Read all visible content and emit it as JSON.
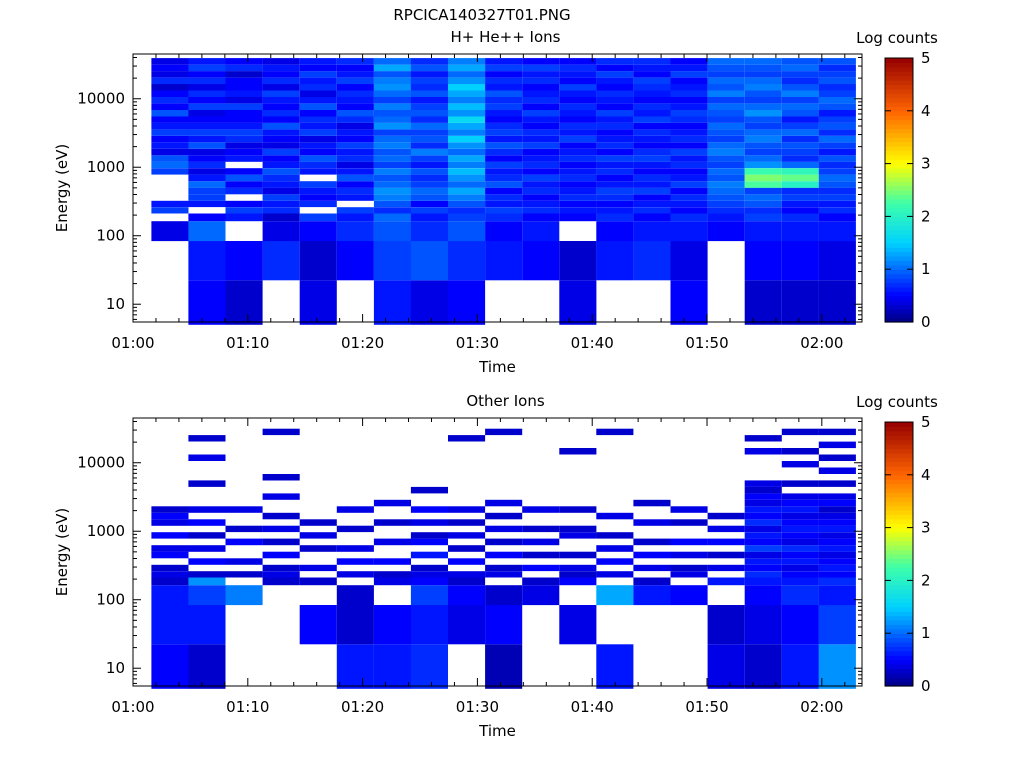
{
  "page_title": "RPCICA140327T01.PNG",
  "chart_data": [
    {
      "type": "heatmap",
      "title": "H+ He++ Ions",
      "xlabel": "Time",
      "ylabel": "Energy (eV)",
      "x_ticks": [
        "01:00",
        "01:10",
        "01:20",
        "01:30",
        "01:40",
        "01:50",
        "02:00"
      ],
      "y_ticks": [
        "10",
        "100",
        "1000",
        "10000"
      ],
      "y_scale": "log",
      "y_range": [
        5.5,
        45000
      ],
      "colorbar": {
        "label": "Log counts",
        "range": [
          0,
          5
        ],
        "ticks": [
          "0",
          "1",
          "2",
          "3",
          "4",
          "5"
        ]
      },
      "time_bins": [
        "01:02",
        "01:05",
        "01:08",
        "01:12",
        "01:15",
        "01:18",
        "01:22",
        "01:25",
        "01:28",
        "01:32",
        "01:35",
        "01:38",
        "01:41",
        "01:45",
        "01:48",
        "01:51",
        "01:55",
        "01:58",
        "02:01"
      ],
      "energy_bins_eV": [
        10,
        50,
        140,
        190,
        235,
        290,
        360,
        450,
        560,
        700,
        870,
        1080,
        1340,
        1670,
        2070,
        2580,
        3200,
        3980,
        4950,
        6150,
        7650,
        9500,
        11800,
        14700,
        18300,
        22700,
        28200,
        35000
      ],
      "log_counts": [
        [
          0,
          0,
          0.4,
          0,
          0.8,
          0.6,
          0,
          0,
          0,
          0,
          0.8,
          1.0,
          0.9,
          0.4,
          0.6,
          0.5,
          0.8,
          0.6,
          0.5,
          0.9,
          0.5,
          0.7,
          0.5,
          0.3,
          0.7,
          0.4,
          0.5,
          0.4
        ],
        [
          0.5,
          0.6,
          1.0,
          0.5,
          0,
          0.6,
          0.8,
          0.8,
          1.0,
          0.6,
          0.4,
          0.7,
          0.5,
          0.4,
          0.9,
          0.6,
          0.8,
          0.6,
          0.5,
          0.4,
          0.8,
          0.5,
          0.7,
          0.4,
          0.7,
          0.5,
          0.8,
          0.6
        ],
        [
          0.3,
          0.5,
          0,
          0.6,
          0.8,
          0.5,
          0,
          0.7,
          0.5,
          0.9,
          0.5,
          0,
          0.6,
          0.5,
          0.4,
          0.7,
          0.8,
          0.6,
          0.5,
          0.5,
          0.8,
          0.4,
          0.6,
          0.5,
          0.5,
          0.3,
          0.7,
          0.5
        ],
        [
          0,
          0.7,
          0.4,
          0.3,
          0.7,
          0.6,
          0.8,
          0.4,
          0.6,
          0.7,
          0.9,
          0.6,
          0.5,
          0.8,
          0.4,
          0.5,
          0.6,
          0.9,
          0.5,
          0.7,
          0.5,
          0.6,
          0.8,
          0.4,
          0.7,
          0.5,
          0.6,
          0.4
        ],
        [
          0.4,
          0.3,
          0.5,
          0.8,
          0,
          0.7,
          0.5,
          0.6,
          0.8,
          0,
          0.6,
          0.7,
          0.9,
          0.5,
          0.6,
          0.4,
          0.8,
          0.6,
          0.7,
          0.5,
          0.9,
          0.6,
          0.4,
          0.7,
          0.6,
          0.8,
          0.5,
          0.6
        ],
        [
          0,
          0.5,
          0.7,
          0.6,
          0.8,
          0,
          0.6,
          0.7,
          0.5,
          0.9,
          0.6,
          0.4,
          0.7,
          0.6,
          0.8,
          0.5,
          0.6,
          0.4,
          0.7,
          0.9,
          0.5,
          0.6,
          0.7,
          0.5,
          0.8,
          0.6,
          0.5,
          0.7
        ],
        [
          0.6,
          0.8,
          0.9,
          1.0,
          0.7,
          0.9,
          1.1,
          1.2,
          1.0,
          0.9,
          1.1,
          0.8,
          1.0,
          0.9,
          1.1,
          1.0,
          0.8,
          1.2,
          1.0,
          0.9,
          1.1,
          0.8,
          1.0,
          1.2,
          1.1,
          0.9,
          1.3,
          1.0
        ],
        [
          0.4,
          0.9,
          0.7,
          0.6,
          0.8,
          0.5,
          0.9,
          1.0,
          0.8,
          0.7,
          0.9,
          0.6,
          0.8,
          1.1,
          0.7,
          0.9,
          0.8,
          1.0,
          0.7,
          0.9,
          0.8,
          0.6,
          0.9,
          0.7,
          0.8,
          0.6,
          0.9,
          0.7
        ],
        [
          0.5,
          0.7,
          0.9,
          0.8,
          0.7,
          0.9,
          1.1,
          1.3,
          1.0,
          1.2,
          1.4,
          1.1,
          1.3,
          1.0,
          1.2,
          1.5,
          1.1,
          1.3,
          1.6,
          1.2,
          1.4,
          1.1,
          1.3,
          1.5,
          1.2,
          1.0,
          1.3,
          1.1
        ],
        [
          0,
          0.6,
          0.5,
          0.7,
          0.8,
          0.6,
          0.7,
          0.5,
          0.9,
          0.7,
          0.6,
          0.8,
          0.5,
          0.7,
          0.9,
          0.6,
          0.8,
          0.7,
          0.5,
          0.6,
          0.8,
          0.7,
          0.9,
          0.6,
          0.7,
          0.5,
          0.8,
          0.6
        ],
        [
          0,
          0.5,
          0.6,
          0.5,
          0.7,
          0.6,
          0.5,
          0.7,
          0.6,
          0.8,
          0.5,
          0.7,
          0.6,
          0.5,
          0.8,
          0.6,
          0.7,
          0.5,
          0.6,
          0.8,
          0.5,
          0.7,
          0.6,
          0.5,
          0.7,
          0.6,
          0.8,
          0.5
        ],
        [
          0.4,
          0.3,
          0,
          0.5,
          0.6,
          0.5,
          0.7,
          0.6,
          0.5,
          0.7,
          0.6,
          0.5,
          0.7,
          0.6,
          0.5,
          0.8,
          0.6,
          0.7,
          0.5,
          0.6,
          0.7,
          0.5,
          0.6,
          0.8,
          0.5,
          0.6,
          0.7,
          0.5
        ],
        [
          0,
          0.6,
          0.5,
          0.7,
          0.6,
          0.5,
          0.7,
          0.8,
          0.6,
          0.5,
          0.7,
          0.6,
          0.8,
          0.5,
          0.7,
          0.6,
          0.5,
          0.7,
          0.6,
          0.8,
          0.5,
          0.6,
          0.7,
          0.5,
          0.6,
          0.8,
          0.5,
          0.7
        ],
        [
          0,
          0.7,
          0.6,
          0.5,
          0.7,
          0.6,
          0.5,
          0.8,
          0.6,
          0.7,
          0.5,
          0.6,
          0.8,
          0.7,
          0.5,
          0.6,
          0.7,
          0.5,
          0.8,
          0.6,
          0.7,
          0.5,
          0.6,
          0.7,
          0.8,
          0.5,
          0.6,
          0.7
        ],
        [
          0.5,
          0.4,
          0.6,
          0.7,
          0.5,
          0.6,
          0.7,
          0.5,
          0.8,
          0.6,
          0.5,
          0.7,
          0.6,
          0.8,
          0.5,
          0.7,
          0.6,
          0.5,
          0.7,
          0.8,
          0.6,
          0.5,
          0.7,
          0.6,
          0.5,
          0.8,
          0.6,
          0.5
        ],
        [
          0,
          0,
          0.5,
          0.6,
          0.7,
          0.8,
          0.9,
          1.0,
          1.1,
          0.9,
          1.0,
          0.8,
          0.9,
          1.1,
          1.0,
          0.8,
          0.9,
          1.0,
          0.8,
          0.9,
          1.0,
          0.8,
          1.1,
          0.9,
          1.0,
          0.8,
          0.9,
          1.0
        ],
        [
          0.3,
          0.5,
          0.6,
          0.8,
          0.7,
          0.9,
          1.0,
          0.8,
          2.3,
          2.5,
          2.2,
          1.2,
          1.0,
          0.8,
          0.9,
          1.1,
          1.0,
          0.8,
          0.9,
          1.2,
          1.0,
          0.8,
          0.9,
          1.1,
          1.0,
          0.8,
          0.9,
          1.0
        ],
        [
          0.3,
          0.5,
          0.6,
          0.7,
          0.5,
          0.6,
          0.8,
          0.7,
          2.0,
          2.4,
          2.1,
          1.0,
          0.7,
          0.8,
          0.9,
          0.7,
          1.0,
          0.8,
          0.6,
          0.9,
          1.0,
          0.8,
          1.1,
          0.9,
          0.7,
          0.8,
          1.0,
          0.9
        ],
        [
          0.3,
          0.4,
          0.6,
          0.5,
          0.7,
          0.6,
          0.8,
          0.7,
          0.9,
          1.0,
          0.8,
          0.7,
          0.9,
          0.6,
          0.8,
          1.0,
          0.7,
          0.9,
          0.8,
          0.6,
          0.9,
          1.0,
          0.8,
          0.7,
          0.9,
          0.8,
          0.7,
          0.9
        ]
      ]
    },
    {
      "type": "heatmap",
      "title": "Other Ions",
      "xlabel": "Time",
      "ylabel": "Energy (eV)",
      "x_ticks": [
        "01:00",
        "01:10",
        "01:20",
        "01:30",
        "01:40",
        "01:50",
        "02:00"
      ],
      "y_ticks": [
        "10",
        "100",
        "1000",
        "10000"
      ],
      "y_scale": "log",
      "y_range": [
        5.5,
        45000
      ],
      "colorbar": {
        "label": "Log counts",
        "range": [
          0,
          5
        ],
        "ticks": [
          "0",
          "1",
          "2",
          "3",
          "4",
          "5"
        ]
      },
      "time_bins": [
        "01:02",
        "01:05",
        "01:08",
        "01:12",
        "01:15",
        "01:18",
        "01:22",
        "01:25",
        "01:28",
        "01:32",
        "01:35",
        "01:38",
        "01:41",
        "01:45",
        "01:48",
        "01:51",
        "01:55",
        "01:58",
        "02:01"
      ],
      "energy_bins_eV": [
        10,
        50,
        140,
        190,
        235,
        290,
        360,
        450,
        560,
        700,
        870,
        1080,
        1340,
        1670,
        2070,
        2580,
        3200,
        3980,
        4950,
        6150,
        7650,
        9500,
        11800,
        14700,
        18300,
        22700,
        28200,
        35000
      ],
      "log_counts": [
        [
          0.5,
          0.6,
          0.6,
          0.3,
          0.4,
          0.3,
          0,
          0.5,
          0.4,
          0,
          0.5,
          0,
          0.4,
          0.5,
          0.3,
          0,
          0,
          0,
          0,
          0,
          0,
          0,
          0,
          0,
          0,
          0,
          0,
          0
        ],
        [
          0.3,
          0.6,
          0.8,
          1.2,
          0.3,
          0,
          0.5,
          0,
          0.4,
          0,
          0.3,
          0,
          0.5,
          0,
          0.4,
          0,
          0,
          0,
          0.3,
          0,
          0,
          0,
          0.4,
          0,
          0,
          0.3,
          0,
          0
        ],
        [
          0,
          0,
          1.1,
          0,
          0.3,
          0,
          0.4,
          0,
          0,
          0.5,
          0,
          0.3,
          0,
          0,
          0.4,
          0,
          0,
          0,
          0,
          0,
          0,
          0,
          0,
          0,
          0,
          0,
          0,
          0
        ],
        [
          0,
          0,
          0,
          0.3,
          0.4,
          0.3,
          0,
          0.5,
          0,
          0.3,
          0,
          0.4,
          0,
          0.3,
          0,
          0,
          0.4,
          0,
          0,
          0.3,
          0,
          0,
          0,
          0,
          0,
          0,
          0.3,
          0
        ],
        [
          0,
          0.5,
          0,
          0.3,
          0,
          0.4,
          0,
          0,
          0.3,
          0,
          0.4,
          0,
          0.3,
          0,
          0,
          0,
          0,
          0,
          0,
          0,
          0,
          0,
          0,
          0,
          0,
          0,
          0,
          0
        ],
        [
          0.6,
          0.3,
          0.3,
          0,
          0.4,
          0,
          0.5,
          0,
          0.4,
          0,
          0,
          0.3,
          0,
          0,
          0.4,
          0,
          0,
          0,
          0,
          0,
          0,
          0,
          0,
          0,
          0,
          0,
          0,
          0
        ],
        [
          0.6,
          0.5,
          0,
          0.4,
          0.3,
          0,
          0.5,
          0,
          0,
          0.4,
          0,
          0,
          0.3,
          0,
          0,
          0.4,
          0,
          0,
          0,
          0,
          0,
          0,
          0,
          0,
          0,
          0,
          0,
          0
        ],
        [
          0.7,
          0.6,
          0.8,
          0.5,
          0.4,
          0.3,
          0,
          0.6,
          0,
          0.5,
          0.3,
          0,
          0.4,
          0,
          0.5,
          0,
          0,
          0.3,
          0,
          0,
          0,
          0,
          0,
          0,
          0,
          0,
          0,
          0
        ],
        [
          0,
          0.4,
          0.5,
          0.3,
          0.4,
          0,
          0.5,
          0,
          0.3,
          0,
          0.4,
          0,
          0.3,
          0,
          0.4,
          0,
          0,
          0,
          0,
          0,
          0,
          0,
          0,
          0,
          0,
          0.3,
          0,
          0
        ],
        [
          0.2,
          0.5,
          0.3,
          0,
          0.4,
          0.3,
          0,
          0.5,
          0,
          0.3,
          0,
          0.4,
          0,
          0.3,
          0,
          0.4,
          0,
          0,
          0,
          0,
          0,
          0,
          0,
          0,
          0,
          0,
          0.3,
          0
        ],
        [
          0,
          0,
          0.4,
          0.3,
          0,
          0.5,
          0,
          0.3,
          0,
          0.4,
          0,
          0.3,
          0,
          0,
          0.4,
          0,
          0,
          0,
          0,
          0,
          0,
          0,
          0,
          0,
          0,
          0,
          0,
          0
        ],
        [
          0,
          0.4,
          0,
          0.5,
          0.3,
          0.4,
          0,
          0.3,
          0,
          0,
          0.4,
          0.3,
          0,
          0,
          0.3,
          0,
          0,
          0,
          0,
          0,
          0,
          0,
          0,
          0.3,
          0,
          0,
          0,
          0
        ],
        [
          0.6,
          0,
          1.3,
          0,
          0.4,
          0,
          0.5,
          0,
          0.4,
          0,
          0.3,
          0,
          0,
          0.4,
          0,
          0,
          0,
          0,
          0,
          0,
          0,
          0,
          0,
          0,
          0,
          0,
          0.3,
          0
        ],
        [
          0,
          0,
          0.6,
          0.3,
          0,
          0.4,
          0,
          0.5,
          0,
          0.3,
          0,
          0,
          0.4,
          0,
          0,
          0.3,
          0,
          0,
          0,
          0,
          0,
          0,
          0,
          0,
          0,
          0,
          0,
          0
        ],
        [
          0,
          0,
          0.5,
          0,
          0.4,
          0.3,
          0,
          0.4,
          0,
          0.5,
          0,
          0,
          0.3,
          0,
          0.4,
          0,
          0,
          0,
          0,
          0,
          0,
          0,
          0,
          0,
          0,
          0,
          0,
          0
        ],
        [
          0.4,
          0.3,
          0,
          0.6,
          0,
          0.4,
          0,
          0.3,
          0,
          0.5,
          0,
          0.4,
          0,
          0.3,
          0,
          0,
          0,
          0,
          0,
          0,
          0,
          0,
          0,
          0,
          0,
          0,
          0,
          0
        ],
        [
          0.3,
          0.4,
          0.5,
          0.6,
          0.7,
          0.5,
          0.6,
          0.4,
          0.8,
          0.5,
          0.6,
          0.4,
          0.7,
          0.5,
          0.6,
          0.4,
          0.5,
          0.3,
          0.4,
          0,
          0,
          0,
          0,
          0.4,
          0,
          0.3,
          0,
          0
        ],
        [
          0.6,
          0.5,
          0.7,
          0.6,
          0.5,
          0.4,
          0.6,
          0.5,
          0.7,
          0.4,
          0.5,
          0.6,
          0.5,
          0.4,
          0.6,
          0.5,
          0.4,
          0,
          0.3,
          0,
          0,
          0.4,
          0,
          0.3,
          0,
          0,
          0.3,
          0
        ],
        [
          1.2,
          0.8,
          0.6,
          0.7,
          0.5,
          0.6,
          0.5,
          0.4,
          0.6,
          0.5,
          0.4,
          0.6,
          0.5,
          0.4,
          0.3,
          0.5,
          0.4,
          0,
          0.3,
          0,
          0.4,
          0,
          0.3,
          0,
          0.4,
          0,
          0.3,
          0
        ]
      ]
    }
  ]
}
